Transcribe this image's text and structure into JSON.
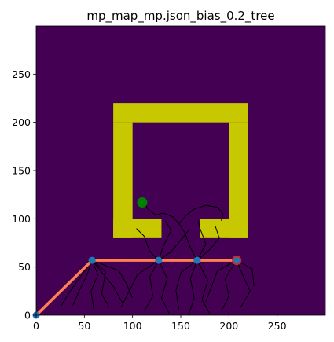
{
  "chart_data": {
    "type": "image-plot",
    "title": "mp_map_mp.json_bias_0.2_tree",
    "xlabel": "",
    "ylabel": "",
    "xlim": [
      0,
      300
    ],
    "ylim": [
      0,
      300
    ],
    "xticks": [
      0,
      50,
      100,
      150,
      200,
      250
    ],
    "yticks": [
      0,
      50,
      100,
      150,
      200,
      250
    ],
    "colors": {
      "free_space": "#440154",
      "obstacle": "#c8c800",
      "tree": "#000000",
      "path": "#ff7f50",
      "path_node": "#1f77b4",
      "start": "#1f77b4",
      "goal": "#008000",
      "end_marker_edge": "#d62728"
    },
    "obstacle_rects": [
      {
        "x0": 80,
        "x1": 220,
        "y0": 200,
        "y1": 220
      },
      {
        "x0": 80,
        "x1": 100,
        "y0": 80,
        "y1": 200
      },
      {
        "x0": 200,
        "x1": 220,
        "y0": 80,
        "y1": 200
      },
      {
        "x0": 80,
        "x1": 130,
        "y0": 80,
        "y1": 100
      },
      {
        "x0": 170,
        "x1": 220,
        "y0": 80,
        "y1": 100
      }
    ],
    "goal_point": {
      "x": 110,
      "y": 117
    },
    "path": [
      {
        "x": 0,
        "y": 0
      },
      {
        "x": 58,
        "y": 57
      },
      {
        "x": 127,
        "y": 57
      },
      {
        "x": 167,
        "y": 57
      },
      {
        "x": 208,
        "y": 57
      }
    ],
    "tree_branches": [
      [
        [
          58,
          57
        ],
        [
          64,
          42
        ],
        [
          57,
          25
        ],
        [
          60,
          5
        ]
      ],
      [
        [
          58,
          57
        ],
        [
          72,
          45
        ],
        [
          68,
          22
        ],
        [
          76,
          8
        ]
      ],
      [
        [
          58,
          57
        ],
        [
          52,
          40
        ],
        [
          44,
          24
        ],
        [
          38,
          10
        ]
      ],
      [
        [
          127,
          57
        ],
        [
          118,
          40
        ],
        [
          121,
          20
        ],
        [
          112,
          4
        ]
      ],
      [
        [
          127,
          57
        ],
        [
          136,
          38
        ],
        [
          130,
          18
        ],
        [
          138,
          2
        ]
      ],
      [
        [
          127,
          57
        ],
        [
          105,
          42
        ],
        [
          96,
          24
        ],
        [
          88,
          8
        ]
      ],
      [
        [
          167,
          57
        ],
        [
          160,
          38
        ],
        [
          164,
          18
        ],
        [
          158,
          0
        ]
      ],
      [
        [
          167,
          57
        ],
        [
          178,
          36
        ],
        [
          172,
          16
        ],
        [
          180,
          2
        ]
      ],
      [
        [
          167,
          57
        ],
        [
          150,
          44
        ],
        [
          145,
          26
        ],
        [
          148,
          6
        ]
      ],
      [
        [
          208,
          57
        ],
        [
          215,
          40
        ],
        [
          222,
          25
        ],
        [
          212,
          8
        ]
      ],
      [
        [
          208,
          57
        ],
        [
          196,
          38
        ],
        [
          200,
          20
        ],
        [
          192,
          4
        ]
      ],
      [
        [
          208,
          57
        ],
        [
          224,
          48
        ],
        [
          226,
          30
        ]
      ],
      [
        [
          127,
          57
        ],
        [
          132,
          72
        ],
        [
          140,
          88
        ],
        [
          134,
          98
        ]
      ],
      [
        [
          167,
          57
        ],
        [
          160,
          70
        ],
        [
          154,
          86
        ],
        [
          148,
          95
        ]
      ],
      [
        [
          167,
          57
        ],
        [
          180,
          68
        ],
        [
          190,
          80
        ],
        [
          186,
          92
        ]
      ],
      [
        [
          127,
          57
        ],
        [
          118,
          66
        ],
        [
          112,
          82
        ],
        [
          104,
          90
        ]
      ],
      [
        [
          148,
          95
        ],
        [
          142,
          102
        ],
        [
          132,
          106
        ],
        [
          124,
          104
        ]
      ],
      [
        [
          148,
          95
        ],
        [
          156,
          104
        ],
        [
          164,
          110
        ],
        [
          176,
          114
        ]
      ],
      [
        [
          176,
          114
        ],
        [
          188,
          112
        ],
        [
          194,
          105
        ],
        [
          192,
          98
        ]
      ],
      [
        [
          124,
          104
        ],
        [
          116,
          110
        ],
        [
          112,
          117
        ]
      ],
      [
        [
          167,
          57
        ],
        [
          176,
          74
        ],
        [
          170,
          90
        ],
        [
          168,
          98
        ]
      ],
      [
        [
          127,
          57
        ],
        [
          140,
          66
        ],
        [
          150,
          78
        ],
        [
          158,
          88
        ]
      ],
      [
        [
          58,
          57
        ],
        [
          86,
          46
        ],
        [
          94,
          32
        ],
        [
          100,
          18
        ]
      ],
      [
        [
          208,
          57
        ],
        [
          188,
          46
        ],
        [
          182,
          30
        ],
        [
          176,
          14
        ]
      ],
      [
        [
          58,
          57
        ],
        [
          80,
          30
        ],
        [
          90,
          12
        ]
      ],
      [
        [
          58,
          57
        ],
        [
          36,
          26
        ],
        [
          26,
          10
        ]
      ]
    ]
  }
}
